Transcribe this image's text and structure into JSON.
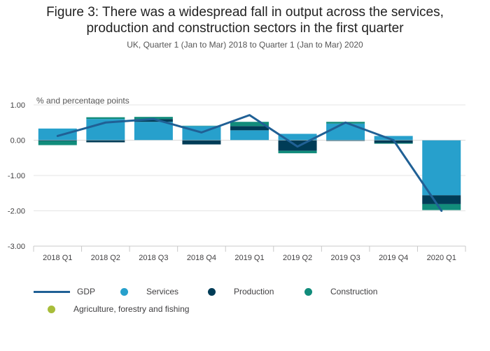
{
  "chart_data": {
    "type": "bar",
    "title_line1": "Figure 3: There was a widespread fall in output across the services,",
    "title_line2": "production and construction sectors in the first quarter",
    "subtitle": "UK, Quarter 1 (Jan to Mar) 2018 to Quarter 1 (Jan to Mar) 2020",
    "ylabel": "% and percentage points",
    "ylim": [
      -3,
      1
    ],
    "yticks": [
      {
        "value": 1,
        "label": "1.00"
      },
      {
        "value": 0,
        "label": "0.00"
      },
      {
        "value": -1,
        "label": "-1.00"
      },
      {
        "value": -2,
        "label": "-2.00"
      },
      {
        "value": -3,
        "label": "-3.00"
      }
    ],
    "categories": [
      "2018 Q1",
      "2018 Q2",
      "2018 Q3",
      "2018 Q4",
      "2019 Q1",
      "2019 Q2",
      "2019 Q3",
      "2019 Q4",
      "2020 Q1"
    ],
    "stacked": true,
    "series": [
      {
        "name": "Services",
        "color": "#27a0cc",
        "values": [
          0.33,
          0.6,
          0.52,
          0.4,
          0.28,
          0.18,
          0.47,
          0.12,
          -1.56
        ]
      },
      {
        "name": "Production",
        "color": "#003c57",
        "values": [
          -0.02,
          -0.06,
          0.08,
          -0.12,
          0.12,
          -0.3,
          -0.02,
          -0.08,
          -0.25
        ]
      },
      {
        "name": "Construction",
        "color": "#118c7b",
        "values": [
          -0.12,
          0.05,
          0.06,
          0.01,
          0.12,
          -0.07,
          0.05,
          -0.02,
          -0.17
        ]
      },
      {
        "name": "Agriculture, forestry and fishing",
        "color": "#a8bd3a",
        "values": [
          0,
          0,
          0,
          0,
          0,
          0,
          0,
          0,
          0
        ]
      }
    ],
    "line": {
      "name": "GDP",
      "color": "#206095",
      "values": [
        0.12,
        0.5,
        0.6,
        0.22,
        0.71,
        -0.18,
        0.5,
        0.0,
        -2.0
      ]
    },
    "legend": {
      "gdp": "GDP",
      "services": "Services",
      "production": "Production",
      "construction": "Construction",
      "agriculture": "Agriculture, forestry and fishing"
    }
  }
}
